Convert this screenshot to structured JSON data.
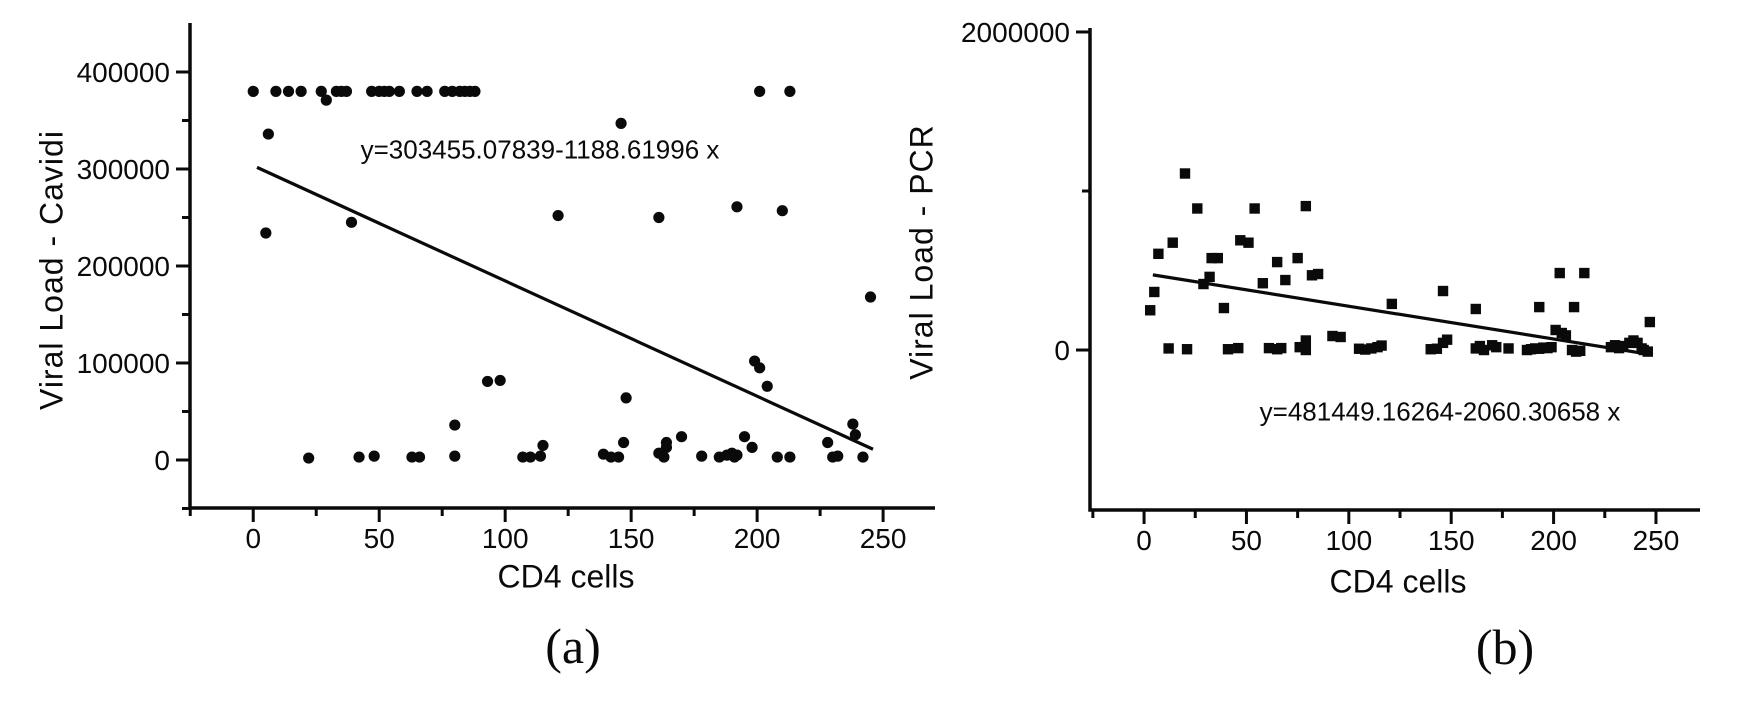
{
  "figure": {
    "background": "#ffffff",
    "ink_color": "#0a0a0a"
  },
  "chart_data": [
    {
      "id": "a",
      "type": "scatter",
      "marker": "circle",
      "caption": "(a)",
      "xlabel": "CD4 cells",
      "ylabel": "Viral Load - Cavidi",
      "equation": "y=303455.07839-1188.61996 x",
      "regression": {
        "intercept": 303455.07839,
        "slope": -1188.61996,
        "x_start": 1.5,
        "x_end": 246
      },
      "xlim": [
        -25.1,
        270.6
      ],
      "ylim": [
        -49500,
        450500
      ],
      "x_ticks_major": [
        0,
        50,
        100,
        150,
        200,
        250
      ],
      "x_ticks_minor": [
        -25,
        25,
        75,
        125,
        175,
        225
      ],
      "y_ticks_major": [
        0,
        100000,
        200000,
        300000,
        400000
      ],
      "y_ticks_minor": [
        -50000,
        50000,
        150000,
        250000,
        350000
      ],
      "grid": false,
      "legend": "none",
      "points": [
        [
          0,
          380000
        ],
        [
          9,
          380000
        ],
        [
          14,
          380000
        ],
        [
          19,
          380000
        ],
        [
          27,
          380000
        ],
        [
          33,
          380000
        ],
        [
          35,
          380000
        ],
        [
          37,
          380000
        ],
        [
          47,
          380000
        ],
        [
          50,
          380000
        ],
        [
          52,
          380000
        ],
        [
          54,
          380000
        ],
        [
          58,
          380000
        ],
        [
          65,
          380000
        ],
        [
          69,
          380000
        ],
        [
          76,
          380000
        ],
        [
          79,
          380000
        ],
        [
          82,
          380000
        ],
        [
          84,
          380000
        ],
        [
          86,
          380000
        ],
        [
          88,
          380000
        ],
        [
          201,
          380000
        ],
        [
          213,
          380000
        ],
        [
          29,
          371000
        ],
        [
          6,
          336000
        ],
        [
          5,
          234000
        ],
        [
          39,
          245000
        ],
        [
          121,
          252000
        ],
        [
          146,
          347000
        ],
        [
          161,
          250000
        ],
        [
          192,
          261000
        ],
        [
          210,
          257000
        ],
        [
          245,
          168000
        ],
        [
          93,
          81000
        ],
        [
          98,
          82000
        ],
        [
          148,
          64000
        ],
        [
          199,
          102000
        ],
        [
          201,
          95000
        ],
        [
          204,
          76000
        ],
        [
          80,
          36000
        ],
        [
          238,
          37000
        ],
        [
          239,
          26000
        ],
        [
          170,
          24000
        ],
        [
          195,
          24000
        ],
        [
          228,
          18000
        ],
        [
          147,
          18000
        ],
        [
          164,
          18000
        ],
        [
          115,
          15000
        ],
        [
          164,
          13000
        ],
        [
          198,
          13000
        ],
        [
          22,
          2000
        ],
        [
          42,
          3000
        ],
        [
          48,
          4000
        ],
        [
          63,
          3000
        ],
        [
          66,
          3000
        ],
        [
          80,
          4000
        ],
        [
          107,
          3000
        ],
        [
          110,
          3000
        ],
        [
          114,
          4000
        ],
        [
          139,
          6000
        ],
        [
          142,
          3000
        ],
        [
          145,
          3000
        ],
        [
          161,
          7000
        ],
        [
          163,
          3000
        ],
        [
          178,
          4000
        ],
        [
          185,
          3000
        ],
        [
          188,
          5000
        ],
        [
          190,
          7000
        ],
        [
          191,
          3000
        ],
        [
          192,
          5000
        ],
        [
          208,
          3000
        ],
        [
          213,
          3000
        ],
        [
          230,
          3000
        ],
        [
          232,
          4000
        ],
        [
          242,
          3000
        ]
      ]
    },
    {
      "id": "b",
      "type": "scatter",
      "marker": "square",
      "caption": "(b)",
      "xlabel": "CD4 cells",
      "ylabel": "Viral Load - PCR",
      "equation": "y=481449.16264-2060.30658 x",
      "regression": {
        "intercept": 481449.16264,
        "slope": -2060.30658,
        "x_start": 4.3,
        "x_end": 248.5
      },
      "xlim": [
        -26.4,
        271.5
      ],
      "ylim": [
        -1006000,
        2025000
      ],
      "x_ticks_major": [
        0,
        50,
        100,
        150,
        200,
        250
      ],
      "x_ticks_minor": [
        -25,
        25,
        75,
        125,
        175,
        225
      ],
      "y_ticks_major": [
        0,
        2000000
      ],
      "y_ticks_minor": [
        1000000
      ],
      "grid": false,
      "legend": "none",
      "points": [
        [
          20,
          1110000
        ],
        [
          26,
          890000
        ],
        [
          54,
          890000
        ],
        [
          79,
          905000
        ],
        [
          14,
          675000
        ],
        [
          47,
          690000
        ],
        [
          51,
          675000
        ],
        [
          7,
          605000
        ],
        [
          33,
          578000
        ],
        [
          36,
          578000
        ],
        [
          65,
          553000
        ],
        [
          75,
          578000
        ],
        [
          82,
          470000
        ],
        [
          85,
          478000
        ],
        [
          58,
          420000
        ],
        [
          69,
          440000
        ],
        [
          29,
          415000
        ],
        [
          32,
          460000
        ],
        [
          203,
          484000
        ],
        [
          215,
          484000
        ],
        [
          5,
          365000
        ],
        [
          146,
          371000
        ],
        [
          3,
          250000
        ],
        [
          39,
          264000
        ],
        [
          121,
          290000
        ],
        [
          162,
          258000
        ],
        [
          193,
          270000
        ],
        [
          210,
          270000
        ],
        [
          247,
          176000
        ],
        [
          92,
          88000
        ],
        [
          96,
          82000
        ],
        [
          79,
          60000
        ],
        [
          148,
          65000
        ],
        [
          146,
          45000
        ],
        [
          201,
          126000
        ],
        [
          204,
          107000
        ],
        [
          206,
          92000
        ],
        [
          239,
          60000
        ],
        [
          237,
          45000
        ],
        [
          241,
          45000
        ],
        [
          170,
          30000
        ],
        [
          230,
          30000
        ],
        [
          164,
          25000
        ],
        [
          234,
          25000
        ],
        [
          116,
          28000
        ],
        [
          12,
          10000
        ],
        [
          21,
          5000
        ],
        [
          41,
          5000
        ],
        [
          46,
          12000
        ],
        [
          61,
          12000
        ],
        [
          65,
          5000
        ],
        [
          67,
          12000
        ],
        [
          76,
          18000
        ],
        [
          79,
          0
        ],
        [
          105,
          8000
        ],
        [
          108,
          3000
        ],
        [
          111,
          10000
        ],
        [
          114,
          18000
        ],
        [
          140,
          5000
        ],
        [
          143,
          8000
        ],
        [
          162,
          10000
        ],
        [
          166,
          0
        ],
        [
          172,
          18000
        ],
        [
          178,
          10000
        ],
        [
          187,
          0
        ],
        [
          189,
          5000
        ],
        [
          191,
          10000
        ],
        [
          193,
          8000
        ],
        [
          195,
          15000
        ],
        [
          197,
          12000
        ],
        [
          199,
          18000
        ],
        [
          209,
          0
        ],
        [
          211,
          -10000
        ],
        [
          213,
          -5000
        ],
        [
          228,
          18000
        ],
        [
          232,
          12000
        ],
        [
          243,
          10000
        ],
        [
          244,
          0
        ],
        [
          246,
          -10000
        ]
      ]
    }
  ]
}
